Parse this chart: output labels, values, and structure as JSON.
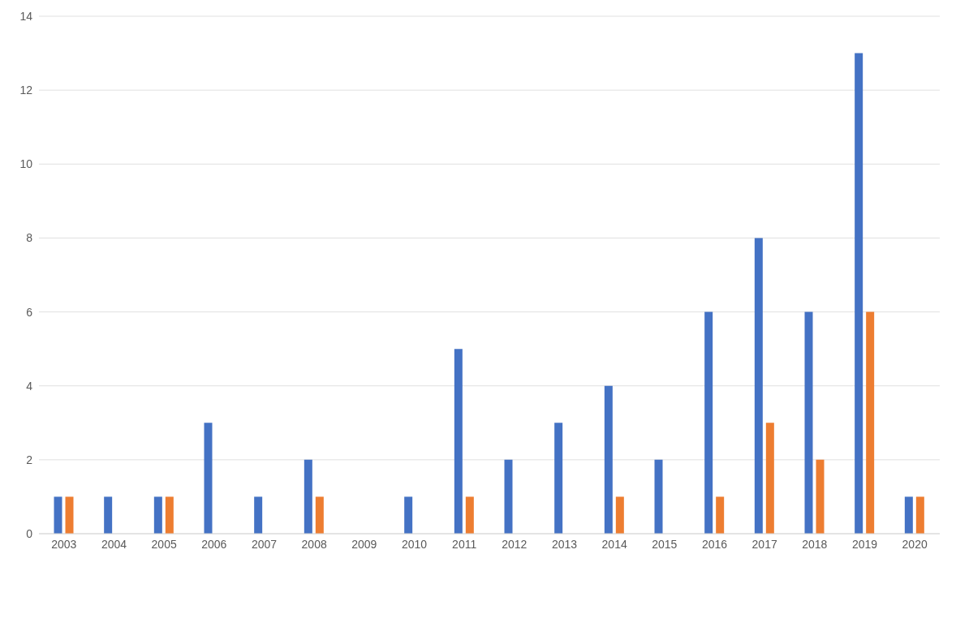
{
  "chart_data": {
    "type": "bar",
    "categories": [
      "2003",
      "2004",
      "2005",
      "2006",
      "2007",
      "2008",
      "2009",
      "2010",
      "2011",
      "2012",
      "2013",
      "2014",
      "2015",
      "2016",
      "2017",
      "2018",
      "2019",
      "2020"
    ],
    "series": [
      {
        "color": "#4472c4",
        "values": [
          1,
          1,
          1,
          3,
          1,
          2,
          0,
          1,
          5,
          2,
          3,
          4,
          2,
          6,
          8,
          6,
          13,
          1
        ]
      },
      {
        "color": "#ed7d31",
        "values": [
          1,
          0,
          1,
          0,
          0,
          1,
          0,
          0,
          1,
          0,
          0,
          1,
          0,
          1,
          3,
          2,
          6,
          1
        ]
      }
    ],
    "ylim": [
      0,
      14
    ],
    "yticks": [
      0,
      2,
      4,
      6,
      8,
      10,
      12,
      14
    ],
    "grid": "y"
  }
}
